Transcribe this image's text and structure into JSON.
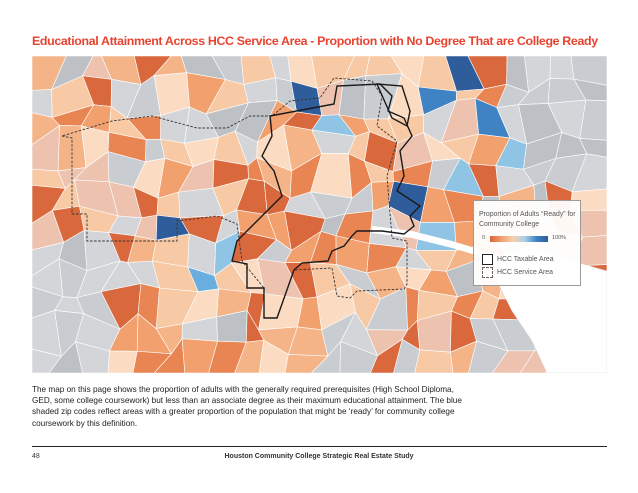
{
  "title": "Educational Attainment Across HCC Service Area - Proportion with No Degree That are College Ready",
  "legend": {
    "title": "Proportion of Adults “Ready” for Community College",
    "scale_min": "0",
    "scale_max": "100%",
    "ramp_colors": [
      "#d8633b",
      "#f2a06e",
      "#f7d1b0",
      "#a9cfe8",
      "#3f83c4",
      "#2f5d9c"
    ],
    "keys": [
      {
        "label": "HCC Taxable Area",
        "style": "solid"
      },
      {
        "label": "HCC Service Area",
        "style": "dashed"
      }
    ]
  },
  "description": "The map on this page shows the proportion of adults with the generally required prerequisites (High School Diploma, GED, some college coursework) but less than an associate degree as their maximum educational attainment.  The blue shaded zip codes reflect areas with a greater proportion of the population that might be ‘ready’ for community college coursework by this definition.",
  "footer": {
    "page_number": "48",
    "document_title": "Houston Community College Strategic Real Estate Study"
  },
  "colors": {
    "title": "#e8432f",
    "no_data": "#c9ccd0",
    "taxable_boundary": "#1a1a1a",
    "service_boundary": "#333333"
  }
}
